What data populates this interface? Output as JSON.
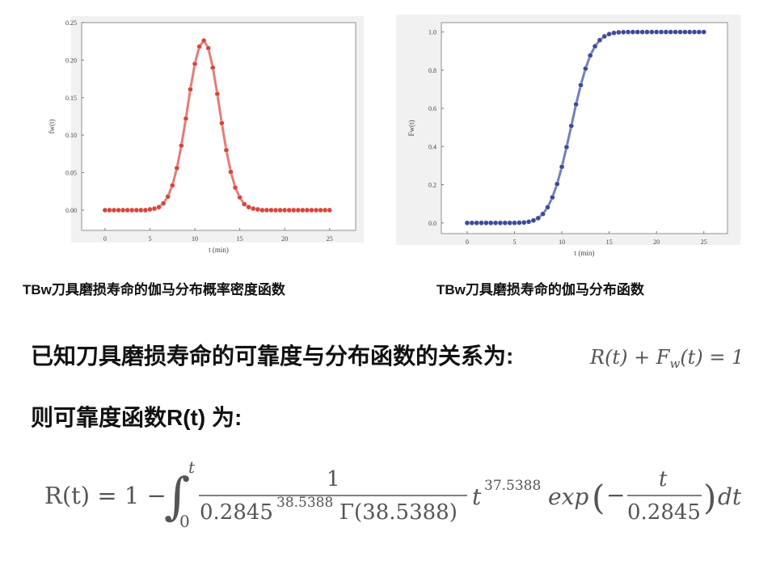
{
  "chart_data": [
    {
      "type": "scatter",
      "x_label": "t (min)",
      "y_label": "fw(t)",
      "color": "#d8453a",
      "x": [
        0,
        0.5,
        1,
        1.5,
        2,
        2.5,
        3,
        3.5,
        4,
        4.5,
        5,
        5.5,
        6,
        6.5,
        7,
        7.5,
        8,
        8.5,
        9,
        9.5,
        10,
        10.5,
        11,
        11.5,
        12,
        12.5,
        13,
        13.5,
        14,
        14.5,
        15,
        15.5,
        16,
        16.5,
        17,
        17.5,
        18,
        18.5,
        19,
        19.5,
        20,
        20.5,
        21,
        21.5,
        22,
        22.5,
        23,
        23.5,
        24,
        24.5,
        25
      ],
      "values": [
        0,
        0,
        0,
        0,
        0,
        0,
        0,
        0,
        0,
        0,
        0.001,
        0.002,
        0.004,
        0.009,
        0.018,
        0.033,
        0.056,
        0.086,
        0.122,
        0.161,
        0.195,
        0.218,
        0.226,
        0.216,
        0.19,
        0.155,
        0.116,
        0.08,
        0.051,
        0.03,
        0.017,
        0.008,
        0.004,
        0.002,
        0.001,
        0,
        0,
        0,
        0,
        0,
        0,
        0,
        0,
        0,
        0,
        0,
        0,
        0,
        0,
        0,
        0
      ],
      "xlim": [
        -2.6,
        27.9
      ],
      "ylim": [
        -0.027,
        0.25
      ],
      "xticks": [
        0,
        5,
        10,
        15,
        20,
        25
      ],
      "yticks": [
        {
          "value": 0,
          "label": "0.00"
        },
        {
          "value": 0.05,
          "label": "0.05"
        },
        {
          "value": 0.1,
          "label": "0.10"
        },
        {
          "value": 0.15,
          "label": "0.15"
        },
        {
          "value": 0.2,
          "label": "0.20"
        },
        {
          "value": 0.25,
          "label": "0.25"
        }
      ]
    },
    {
      "type": "scatter",
      "x_label": "t (min)",
      "y_label": "Fw(t)",
      "color": "#3b4a9c",
      "x": [
        0,
        0.5,
        1,
        1.5,
        2,
        2.5,
        3,
        3.5,
        4,
        4.5,
        5,
        5.5,
        6,
        6.5,
        7,
        7.5,
        8,
        8.5,
        9,
        9.5,
        10,
        10.5,
        11,
        11.5,
        12,
        12.5,
        13,
        13.5,
        14,
        14.5,
        15,
        15.5,
        16,
        16.5,
        17,
        17.5,
        18,
        18.5,
        19,
        19.5,
        20,
        20.5,
        21,
        21.5,
        22,
        22.5,
        23,
        23.5,
        24,
        24.5,
        25
      ],
      "values": [
        0,
        0,
        0,
        0,
        0,
        0,
        0,
        0,
        0,
        0,
        0,
        0.001,
        0.002,
        0.006,
        0.013,
        0.025,
        0.047,
        0.082,
        0.134,
        0.204,
        0.294,
        0.397,
        0.508,
        0.621,
        0.722,
        0.808,
        0.877,
        0.925,
        0.957,
        0.977,
        0.989,
        0.995,
        0.998,
        0.999,
        1,
        1,
        1,
        1,
        1,
        1,
        1,
        1,
        1,
        1,
        1,
        1,
        1,
        1,
        1,
        1,
        1
      ],
      "xlim": [
        -2.73,
        27.5
      ],
      "ylim": [
        -0.056,
        1.049
      ],
      "xticks": [
        0,
        5,
        10,
        15,
        20,
        25
      ],
      "yticks": [
        {
          "value": 0,
          "label": "0.0"
        },
        {
          "value": 0.2,
          "label": "0.2"
        },
        {
          "value": 0.4,
          "label": "0.4"
        },
        {
          "value": 0.6,
          "label": "0.6"
        },
        {
          "value": 0.8,
          "label": "0.8"
        },
        {
          "value": 1,
          "label": "1.0"
        }
      ]
    }
  ],
  "captions": [
    "TBw刀具磨损寿命的伽马分布概率密度函数",
    "TBw刀具磨损寿命的伽马分布函数"
  ],
  "relation_text": "已知刀具磨损寿命的可靠度与分布函数的关系为:",
  "relation_formula": [
    "R(t) + F",
    "w",
    "(t) = 1"
  ],
  "reliability_text": "则可靠度函数R(t) 为:",
  "formula": {
    "lhs": "R(t) = 1 −",
    "integral": "∫",
    "upper": "t",
    "lower": "0",
    "num": "1",
    "den_base": "0.2845",
    "den_exp": "38.5388",
    "den_gamma": "Γ(38.5388)",
    "t": "t",
    "t_exp": "37.5388",
    "exp": "exp",
    "open": "(",
    "minus": "−",
    "frac_num": "t",
    "frac_den": "0.2845",
    "close": ")",
    "dt": "dt"
  }
}
